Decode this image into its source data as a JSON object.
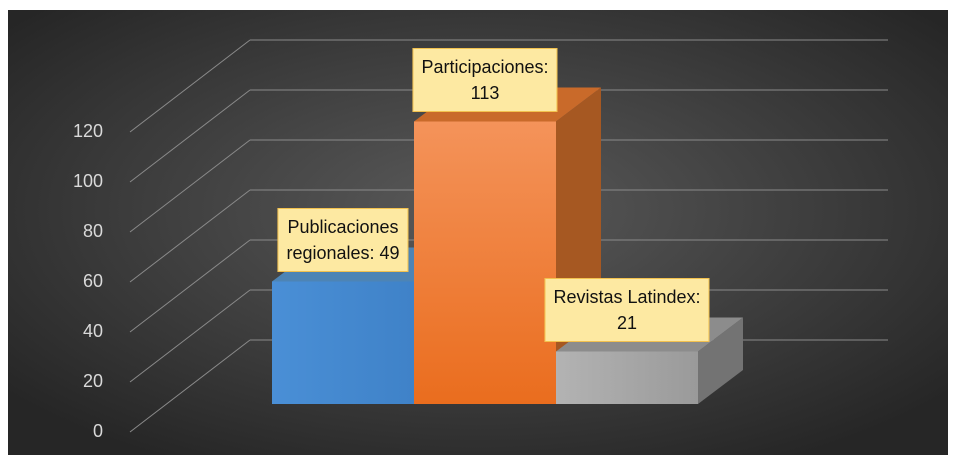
{
  "chart_data": {
    "type": "bar3d",
    "values": [
      49,
      113,
      21
    ],
    "value_labels": [
      "Publicaciones\nregionales: 49",
      "Participaciones:\n113",
      "Revistas Latindex:\n21"
    ],
    "colors": [
      "#5b9bd5",
      "#ed7d31",
      "#a5a5a5"
    ],
    "ylim": [
      0,
      120
    ],
    "yticks": [
      0,
      20,
      40,
      60,
      80,
      100,
      120
    ],
    "grid": true
  }
}
